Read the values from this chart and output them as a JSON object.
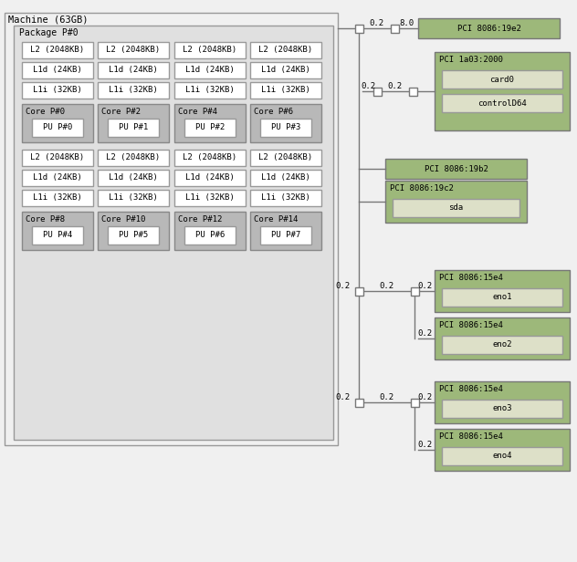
{
  "title": "Machine (63GB)",
  "bg_color": "#f0f0f0",
  "white": "#ffffff",
  "light_gray": "#e0e0e0",
  "core_gray": "#b8b8b8",
  "pci_green": "#9db87a",
  "pci_inner": "#d0dca8",
  "child_box": "#dde0c8",
  "package_label": "Package P#0",
  "cache_rows_top": [
    [
      "L2 (2048KB)",
      "L2 (2048KB)",
      "L2 (2048KB)",
      "L2 (2048KB)"
    ],
    [
      "L1d (24KB)",
      "L1d (24KB)",
      "L1d (24KB)",
      "L1d (24KB)"
    ],
    [
      "L1i (32KB)",
      "L1i (32KB)",
      "L1i (32KB)",
      "L1i (32KB)"
    ]
  ],
  "cores_top": [
    {
      "core": "Core P#0",
      "pu": "PU P#0"
    },
    {
      "core": "Core P#2",
      "pu": "PU P#1"
    },
    {
      "core": "Core P#4",
      "pu": "PU P#2"
    },
    {
      "core": "Core P#6",
      "pu": "PU P#3"
    }
  ],
  "cache_rows_bot": [
    [
      "L2 (2048KB)",
      "L2 (2048KB)",
      "L2 (2048KB)",
      "L2 (2048KB)"
    ],
    [
      "L1d (24KB)",
      "L1d (24KB)",
      "L1d (24KB)",
      "L1d (24KB)"
    ],
    [
      "L1i (32KB)",
      "L1i (32KB)",
      "L1i (32KB)",
      "L1i (32KB)"
    ]
  ],
  "cores_bot": [
    {
      "core": "Core P#8",
      "pu": "PU P#4"
    },
    {
      "core": "Core P#10",
      "pu": "PU P#5"
    },
    {
      "core": "Core P#12",
      "pu": "PU P#6"
    },
    {
      "core": "Core P#14",
      "pu": "PU P#7"
    }
  ]
}
